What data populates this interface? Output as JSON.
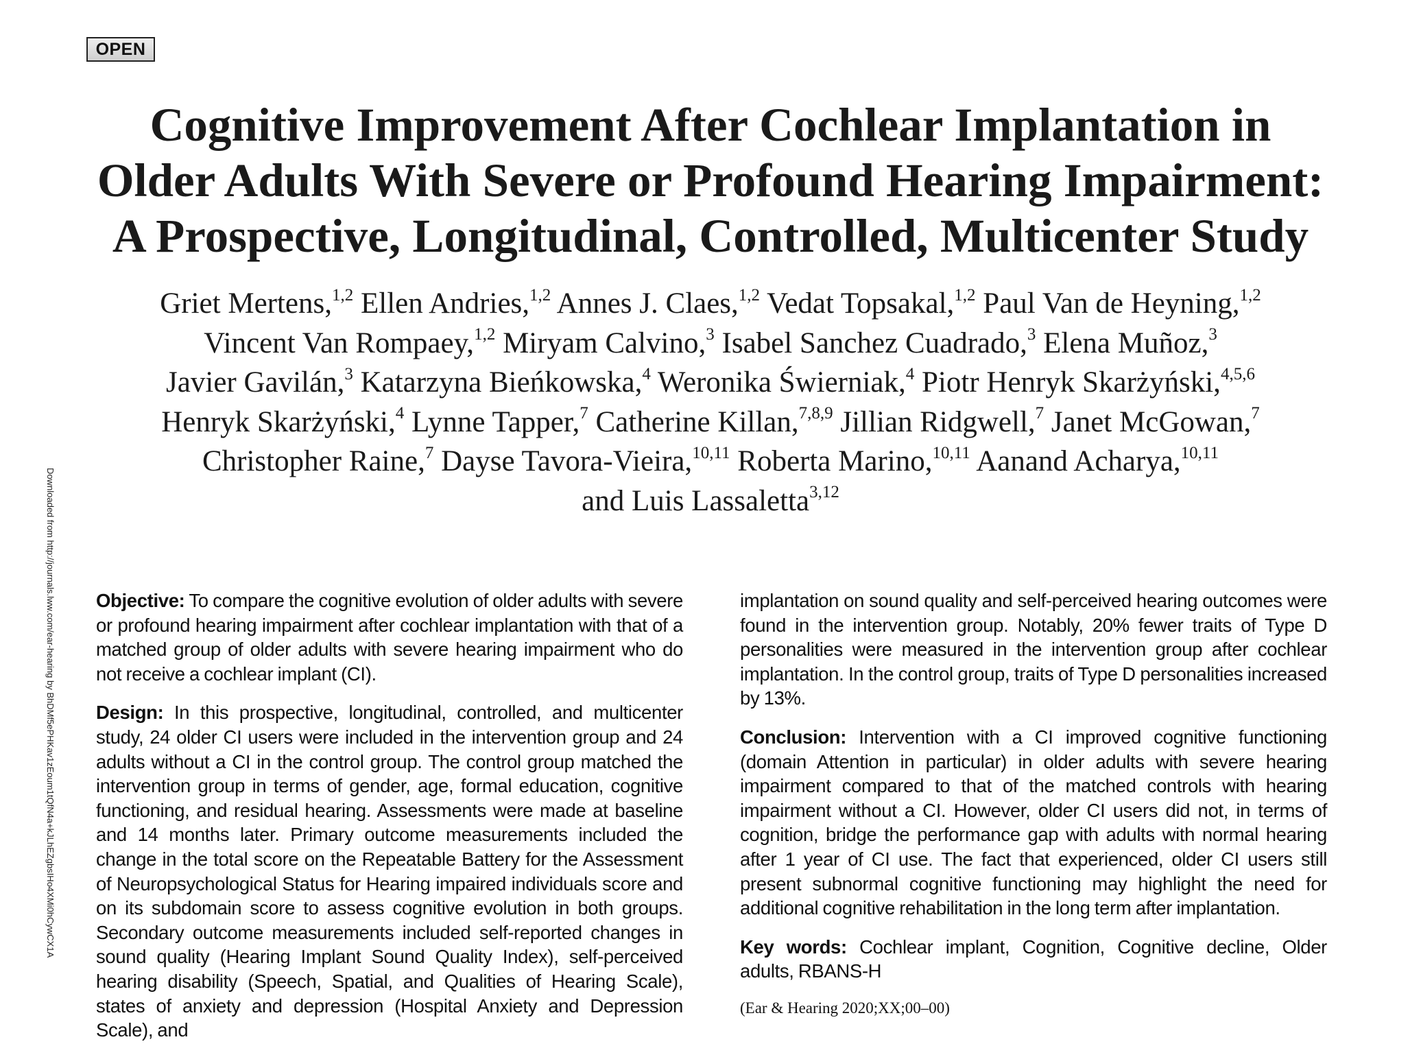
{
  "badge": "OPEN",
  "side_note": "Downloaded from http://journals.lww.com/ear-hearing by BhDMf5ePHKav1zEoum1tQfN4a+kJLhEZgbsIHo4XMi0hCywCX1A",
  "title_lines": [
    "Cognitive Improvement After Cochlear Implantation in",
    "Older Adults With Severe or Profound Hearing Impairment:",
    "A Prospective, Longitudinal, Controlled, Multicenter Study"
  ],
  "authors": {
    "line1": [
      {
        "name": "Griet Mertens,",
        "aff": "1,2"
      },
      {
        "name": "Ellen Andries,",
        "aff": "1,2"
      },
      {
        "name": "Annes J. Claes,",
        "aff": "1,2"
      },
      {
        "name": "Vedat Topsakal,",
        "aff": "1,2"
      },
      {
        "name": "Paul Van de Heyning,",
        "aff": "1,2"
      }
    ],
    "line2": [
      {
        "name": "Vincent Van Rompaey,",
        "aff": "1,2"
      },
      {
        "name": "Miryam Calvino,",
        "aff": "3"
      },
      {
        "name": "Isabel Sanchez Cuadrado,",
        "aff": "3"
      },
      {
        "name": "Elena Muñoz,",
        "aff": "3"
      }
    ],
    "line3": [
      {
        "name": "Javier Gavilán,",
        "aff": "3"
      },
      {
        "name": "Katarzyna Bieńkowska,",
        "aff": "4"
      },
      {
        "name": "Weronika Świerniak,",
        "aff": "4"
      },
      {
        "name": "Piotr Henryk Skarżyński,",
        "aff": "4,5,6"
      }
    ],
    "line4": [
      {
        "name": "Henryk Skarżyński,",
        "aff": "4"
      },
      {
        "name": "Lynne Tapper,",
        "aff": "7"
      },
      {
        "name": "Catherine Killan,",
        "aff": "7,8,9"
      },
      {
        "name": "Jillian Ridgwell,",
        "aff": "7"
      },
      {
        "name": "Janet McGowan,",
        "aff": "7"
      }
    ],
    "line5": [
      {
        "name": "Christopher Raine,",
        "aff": "7"
      },
      {
        "name": "Dayse Tavora-Vieira,",
        "aff": "10,11"
      },
      {
        "name": "Roberta Marino,",
        "aff": "10,11"
      },
      {
        "name": "Aanand Acharya,",
        "aff": "10,11"
      }
    ],
    "line6": [
      {
        "name": "and Luis Lassaletta",
        "aff": "3,12"
      }
    ]
  },
  "abstract": {
    "objective": {
      "label": "Objective:",
      "text": "To compare the cognitive evolution of older adults with severe or profound hearing impairment after cochlear implantation with that of a matched group of older adults with severe hearing impairment who do not receive a cochlear implant (CI)."
    },
    "design": {
      "label": "Design:",
      "text": "In this prospective, longitudinal, controlled, and multicenter study, 24 older CI users were included in the intervention group and 24 adults without a CI in the control group. The control group matched the intervention group in terms of gender, age, formal education, cognitive functioning, and residual hearing. Assessments were made at baseline and 14 months later. Primary outcome measurements included the change in the total score on the Repeatable Battery for the Assessment of Neuropsychological Status for Hearing impaired individuals score and on its subdomain score to assess cognitive evolution in both groups. Secondary outcome measurements included self-reported changes in sound quality (Hearing Implant Sound Quality Index), self-perceived hearing disability (Speech, Spatial, and Qualities of Hearing Scale), states of anxiety and depression (Hospital Anxiety and Depression Scale), and"
    },
    "results_continued": "implantation on sound quality and self-perceived hearing outcomes were found in the intervention group. Notably, 20% fewer traits of Type D personalities were measured in the intervention group after cochlear implantation. In the control group, traits of Type D personalities increased by 13%.",
    "conclusion": {
      "label": "Conclusion:",
      "text": "Intervention with a CI improved cognitive functioning (domain Attention in particular) in older adults with severe hearing impairment compared to that of the matched controls with hearing impairment without a CI. However, older CI users did not, in terms of cognition, bridge the performance gap with adults with normal hearing after 1 year of CI use. The fact that experienced, older CI users still present subnormal cognitive functioning may highlight the need for additional cognitive rehabilitation in the long term after implantation."
    },
    "keywords": {
      "label": "Key words:",
      "text": "Cochlear implant, Cognition, Cognitive decline, Older adults, RBANS-H"
    },
    "citation": "(Ear & Hearing 2020;XX;00–00)"
  }
}
